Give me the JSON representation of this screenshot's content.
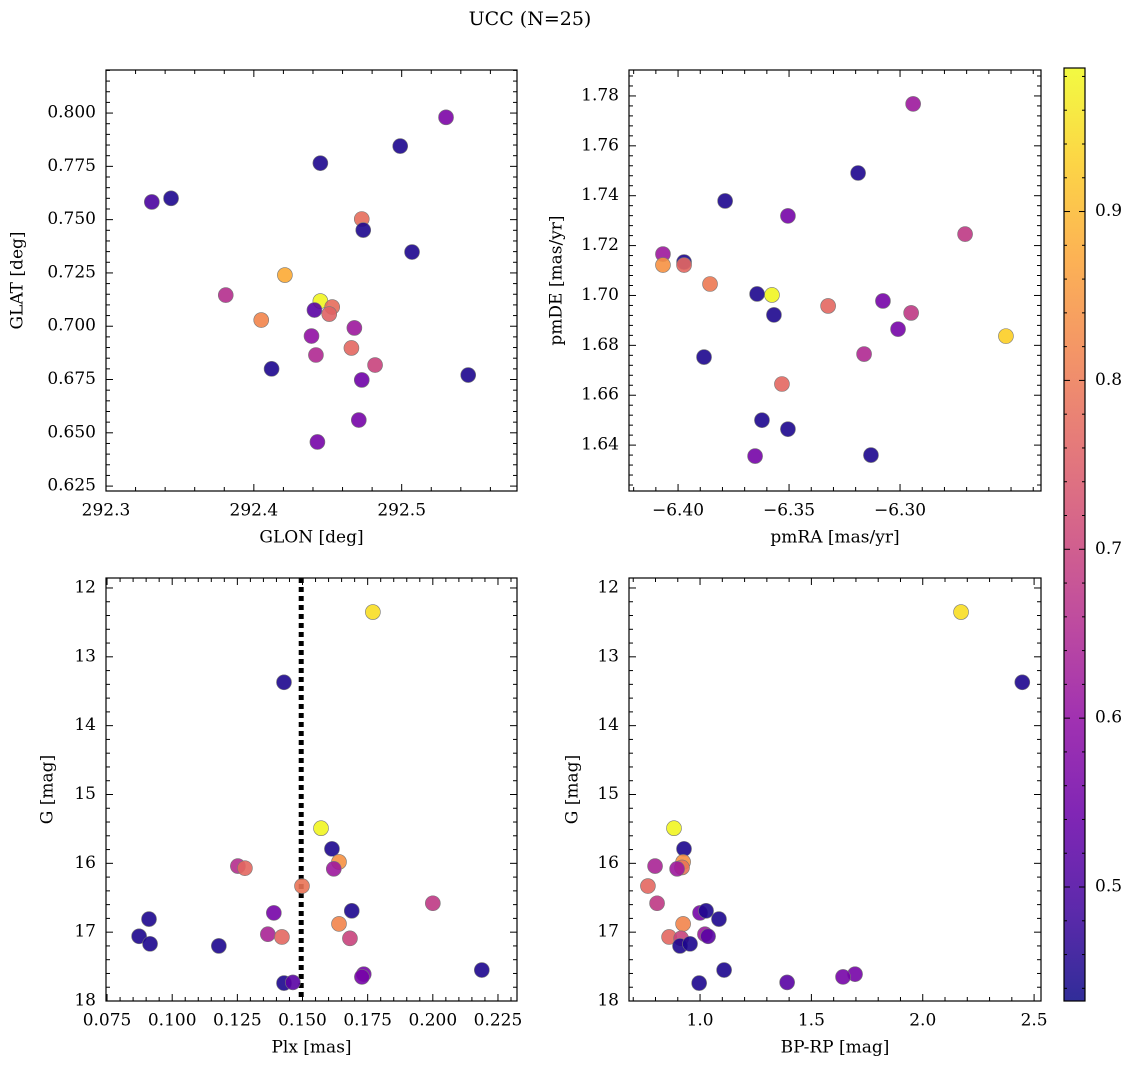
{
  "title": "UCC (N=25)",
  "colorbar": {
    "cmap": "plasma",
    "clim": [
      0.4325,
      0.985
    ],
    "ticks": [
      0.5,
      0.6,
      0.7,
      0.8,
      0.9
    ]
  },
  "chart_data": [
    {
      "type": "scatter",
      "xlabel": "GLON [deg]",
      "ylabel": "GLAT [deg]",
      "x": [
        292.331,
        292.344,
        292.381,
        292.405,
        292.421,
        292.412,
        292.445,
        292.445,
        292.441,
        292.439,
        292.442,
        292.443,
        292.453,
        292.451,
        292.466,
        292.468,
        292.473,
        292.474,
        292.473,
        292.471,
        292.482,
        292.499,
        292.507,
        292.53,
        292.545
      ],
      "y": [
        0.7583,
        0.76,
        0.7146,
        0.7029,
        0.724,
        0.68,
        0.7765,
        0.7118,
        0.7076,
        0.6954,
        0.6865,
        0.6457,
        0.709,
        0.7057,
        0.6898,
        0.6992,
        0.7503,
        0.7451,
        0.6748,
        0.656,
        0.6818,
        0.7845,
        0.7348,
        0.798,
        0.6771
      ],
      "c": [
        0.5,
        0.45,
        0.66,
        0.82,
        0.88,
        0.45,
        0.45,
        0.98,
        0.52,
        0.6,
        0.65,
        0.56,
        0.78,
        0.76,
        0.77,
        0.62,
        0.78,
        0.45,
        0.55,
        0.56,
        0.7,
        0.45,
        0.45,
        0.57,
        0.45
      ],
      "xlim": [
        292.3,
        292.578
      ],
      "ylim": [
        0.6227,
        0.8202
      ],
      "xticks": [
        292.3,
        292.4,
        292.5
      ],
      "yticks": [
        0.625,
        {
          "value": 0.65,
          "label": "0.650"
        },
        0.675,
        {
          "value": 0.7,
          "label": "0.700"
        },
        0.725,
        {
          "value": 0.75,
          "label": "0.750"
        },
        0.775,
        {
          "value": 0.8,
          "label": "0.800"
        }
      ]
    },
    {
      "type": "scatter",
      "xlabel": "pmRA [mas/yr]",
      "ylabel": "pmDE [mas/yr]",
      "x": [
        -6.2941,
        -6.3189,
        -6.3788,
        -6.3505,
        -6.2707,
        -6.4068,
        -6.4068,
        -6.3973,
        -6.3973,
        -6.3856,
        -6.3577,
        -6.3644,
        -6.3324,
        -6.3568,
        -6.3077,
        -6.295,
        -6.3009,
        -6.2523,
        -6.3883,
        -6.3162,
        -6.3532,
        -6.3622,
        -6.3505,
        -6.3653,
        -6.3131
      ],
      "y": [
        1.7768,
        1.7491,
        1.7379,
        1.7319,
        1.7246,
        1.7166,
        1.7122,
        1.7134,
        1.7122,
        1.7046,
        1.7002,
        1.7006,
        1.6958,
        1.6922,
        1.6978,
        1.693,
        1.6865,
        1.6837,
        1.6753,
        1.6765,
        1.6645,
        1.65,
        1.6464,
        1.6356,
        1.636
      ],
      "c": [
        0.62,
        0.45,
        0.45,
        0.56,
        0.68,
        0.62,
        0.84,
        0.45,
        0.77,
        0.8,
        0.98,
        0.45,
        0.77,
        0.45,
        0.56,
        0.68,
        0.56,
        0.93,
        0.45,
        0.65,
        0.77,
        0.45,
        0.45,
        0.56,
        0.45
      ],
      "xlim": [
        -6.4221,
        -6.2365
      ],
      "ylim": [
        1.6216,
        1.7904
      ],
      "xticks": [
        {
          "value": -6.4,
          "label": "−6.40"
        },
        {
          "value": -6.35,
          "label": "−6.35"
        },
        {
          "value": -6.3,
          "label": "−6.30"
        }
      ],
      "yticks": [
        1.64,
        1.66,
        1.68,
        {
          "value": 1.7,
          "label": "1.70"
        },
        1.72,
        1.74,
        1.76,
        1.78
      ]
    },
    {
      "type": "scatter",
      "xlabel": "Plx [mas]",
      "ylabel": "G [mag]",
      "vline": 0.1495,
      "x": [
        0.177,
        0.1429,
        0.1571,
        0.1613,
        0.164,
        0.162,
        0.1252,
        0.1279,
        0.1498,
        0.2,
        0.139,
        0.1689,
        0.0911,
        0.164,
        0.1367,
        0.1421,
        0.1682,
        0.0873,
        0.0915,
        0.1179,
        0.2188,
        0.1735,
        0.1728,
        0.1429,
        0.1463
      ],
      "y": [
        12.35,
        13.37,
        15.49,
        15.79,
        15.98,
        16.08,
        16.04,
        16.07,
        16.33,
        16.58,
        16.72,
        16.69,
        16.81,
        16.88,
        17.03,
        17.07,
        17.09,
        17.06,
        17.17,
        17.2,
        17.55,
        17.61,
        17.65,
        17.74,
        17.73
      ],
      "c": [
        0.95,
        0.45,
        0.98,
        0.45,
        0.84,
        0.62,
        0.66,
        0.77,
        0.79,
        0.68,
        0.56,
        0.45,
        0.45,
        0.82,
        0.64,
        0.77,
        0.7,
        0.45,
        0.45,
        0.45,
        0.45,
        0.56,
        0.56,
        0.45,
        0.52
      ],
      "xlim": [
        0.0746,
        0.2323
      ],
      "ylim": [
        18,
        11.855
      ],
      "xticks": [
        0.075,
        {
          "value": 0.1,
          "label": "0.100"
        },
        0.125,
        {
          "value": 0.15,
          "label": "0.150"
        },
        0.175,
        {
          "value": 0.2,
          "label": "0.200"
        },
        0.225
      ],
      "yticks": [
        12,
        13,
        14,
        15,
        16,
        17,
        18
      ]
    },
    {
      "type": "scatter",
      "xlabel": "BP-RP [mag]",
      "ylabel": "G [mag]",
      "x": [
        2.172,
        2.447,
        0.883,
        0.928,
        0.924,
        0.919,
        0.897,
        0.798,
        0.766,
        0.807,
        1.0,
        1.027,
        1.085,
        0.924,
        1.022,
        0.861,
        0.915,
        1.036,
        0.91,
        0.955,
        1.108,
        1.696,
        1.642,
        0.996,
        1.391
      ],
      "y": [
        12.35,
        13.37,
        15.49,
        15.79,
        15.98,
        16.06,
        16.08,
        16.04,
        16.33,
        16.58,
        16.72,
        16.69,
        16.81,
        16.88,
        17.03,
        17.07,
        17.09,
        17.06,
        17.2,
        17.17,
        17.55,
        17.61,
        17.65,
        17.74,
        17.73
      ],
      "c": [
        0.95,
        0.45,
        0.98,
        0.45,
        0.84,
        0.79,
        0.62,
        0.64,
        0.77,
        0.68,
        0.56,
        0.45,
        0.45,
        0.82,
        0.62,
        0.77,
        0.7,
        0.52,
        0.45,
        0.45,
        0.45,
        0.56,
        0.56,
        0.45,
        0.52
      ],
      "xlim": [
        0.681,
        2.531
      ],
      "ylim": [
        18,
        11.855
      ],
      "xticks": [
        {
          "value": 1.0,
          "label": "1.0"
        },
        1.5,
        {
          "value": 2.0,
          "label": "2.0"
        },
        2.5
      ],
      "yticks": [
        12,
        13,
        14,
        15,
        16,
        17,
        18
      ]
    }
  ]
}
